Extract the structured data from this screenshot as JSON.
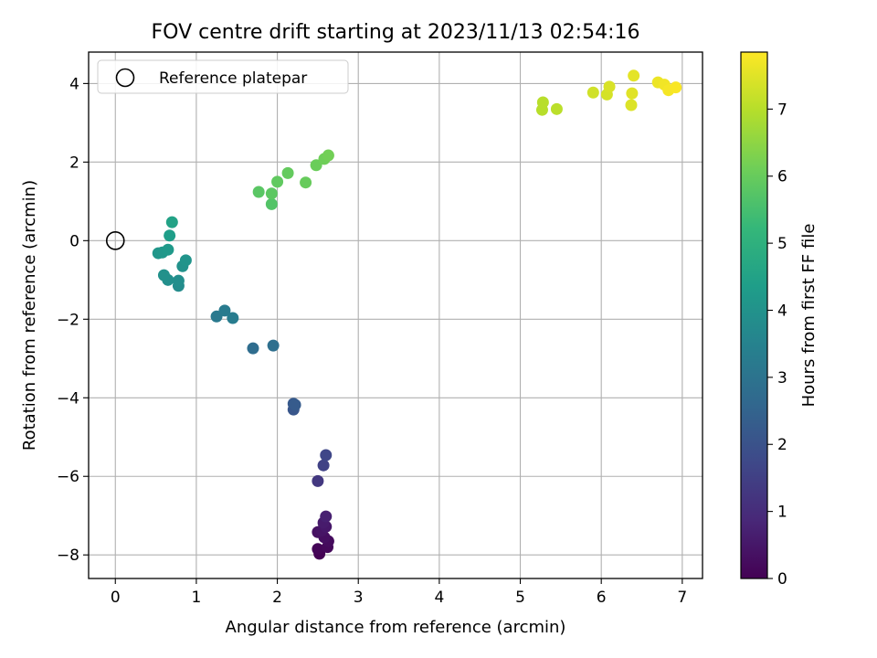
{
  "chart_data": {
    "type": "scatter",
    "title": "FOV centre drift starting at 2023/11/13 02:54:16",
    "xlabel": "Angular distance from reference (arcmin)",
    "ylabel": "Rotation from reference (arcmin)",
    "xlim": [
      -0.33,
      7.25
    ],
    "ylim": [
      -8.6,
      4.8
    ],
    "xticks": [
      0,
      1,
      2,
      3,
      4,
      5,
      6,
      7
    ],
    "xtick_labels": [
      "0",
      "1",
      "2",
      "3",
      "4",
      "5",
      "6",
      "7"
    ],
    "yticks": [
      -8,
      -6,
      -4,
      -2,
      0,
      2,
      4
    ],
    "ytick_labels": [
      "−8",
      "−6",
      "−4",
      "−2",
      "0",
      "2",
      "4"
    ],
    "grid": true,
    "legend": {
      "placement": "top-left",
      "entries": [
        "Reference platepar"
      ]
    },
    "reference_point": {
      "x": 0,
      "y": 0
    },
    "colorbar": {
      "label": "Hours from first FF file",
      "colormap": "viridis",
      "range": [
        0,
        7.85
      ],
      "ticks": [
        0,
        1,
        2,
        3,
        4,
        5,
        6,
        7
      ],
      "tick_labels": [
        "0",
        "1",
        "2",
        "3",
        "4",
        "5",
        "6",
        "7"
      ]
    },
    "points": [
      {
        "x": 2.52,
        "y": -7.97,
        "t": 0.0
      },
      {
        "x": 2.5,
        "y": -7.85,
        "t": 0.08
      },
      {
        "x": 2.62,
        "y": -7.8,
        "t": 0.15
      },
      {
        "x": 2.63,
        "y": -7.65,
        "t": 0.22
      },
      {
        "x": 2.58,
        "y": -7.55,
        "t": 0.28
      },
      {
        "x": 2.5,
        "y": -7.42,
        "t": 0.35
      },
      {
        "x": 2.55,
        "y": -7.38,
        "t": 0.42
      },
      {
        "x": 2.6,
        "y": -7.28,
        "t": 0.5
      },
      {
        "x": 2.57,
        "y": -7.18,
        "t": 0.58
      },
      {
        "x": 2.6,
        "y": -7.02,
        "t": 0.7
      },
      {
        "x": 2.5,
        "y": -6.12,
        "t": 1.3
      },
      {
        "x": 2.57,
        "y": -5.72,
        "t": 1.55
      },
      {
        "x": 2.6,
        "y": -5.46,
        "t": 1.7
      },
      {
        "x": 2.2,
        "y": -4.3,
        "t": 2.1
      },
      {
        "x": 2.2,
        "y": -4.15,
        "t": 2.2
      },
      {
        "x": 2.22,
        "y": -4.18,
        "t": 2.25
      },
      {
        "x": 1.7,
        "y": -2.74,
        "t": 2.8
      },
      {
        "x": 1.95,
        "y": -2.67,
        "t": 2.85
      },
      {
        "x": 1.25,
        "y": -1.93,
        "t": 3.2
      },
      {
        "x": 1.35,
        "y": -1.78,
        "t": 3.25
      },
      {
        "x": 1.45,
        "y": -1.97,
        "t": 3.3
      },
      {
        "x": 0.78,
        "y": -1.15,
        "t": 3.8
      },
      {
        "x": 0.78,
        "y": -1.02,
        "t": 3.85
      },
      {
        "x": 0.65,
        "y": -1.0,
        "t": 3.9
      },
      {
        "x": 0.6,
        "y": -0.88,
        "t": 3.95
      },
      {
        "x": 0.83,
        "y": -0.65,
        "t": 4.0
      },
      {
        "x": 0.87,
        "y": -0.5,
        "t": 4.05
      },
      {
        "x": 0.53,
        "y": -0.32,
        "t": 4.1
      },
      {
        "x": 0.58,
        "y": -0.3,
        "t": 4.15
      },
      {
        "x": 0.65,
        "y": -0.23,
        "t": 4.2
      },
      {
        "x": 0.67,
        "y": 0.13,
        "t": 4.35
      },
      {
        "x": 0.7,
        "y": 0.47,
        "t": 4.5
      },
      {
        "x": 1.93,
        "y": 0.93,
        "t": 5.7
      },
      {
        "x": 1.77,
        "y": 1.24,
        "t": 5.8
      },
      {
        "x": 1.93,
        "y": 1.2,
        "t": 5.85
      },
      {
        "x": 2.0,
        "y": 1.5,
        "t": 5.9
      },
      {
        "x": 2.13,
        "y": 1.72,
        "t": 5.95
      },
      {
        "x": 2.35,
        "y": 1.48,
        "t": 6.0
      },
      {
        "x": 2.48,
        "y": 1.92,
        "t": 6.05
      },
      {
        "x": 2.58,
        "y": 2.08,
        "t": 6.1
      },
      {
        "x": 2.63,
        "y": 2.17,
        "t": 6.15
      },
      {
        "x": 5.27,
        "y": 3.33,
        "t": 7.0
      },
      {
        "x": 5.28,
        "y": 3.52,
        "t": 7.02
      },
      {
        "x": 5.45,
        "y": 3.35,
        "t": 7.05
      },
      {
        "x": 5.9,
        "y": 3.77,
        "t": 7.3
      },
      {
        "x": 6.07,
        "y": 3.72,
        "t": 7.35
      },
      {
        "x": 6.1,
        "y": 3.92,
        "t": 7.4
      },
      {
        "x": 6.37,
        "y": 3.45,
        "t": 7.45
      },
      {
        "x": 6.38,
        "y": 3.75,
        "t": 7.5
      },
      {
        "x": 6.4,
        "y": 4.2,
        "t": 7.55
      },
      {
        "x": 6.7,
        "y": 4.03,
        "t": 7.65
      },
      {
        "x": 6.78,
        "y": 3.97,
        "t": 7.7
      },
      {
        "x": 6.83,
        "y": 3.83,
        "t": 7.75
      },
      {
        "x": 6.92,
        "y": 3.9,
        "t": 7.8
      }
    ]
  }
}
